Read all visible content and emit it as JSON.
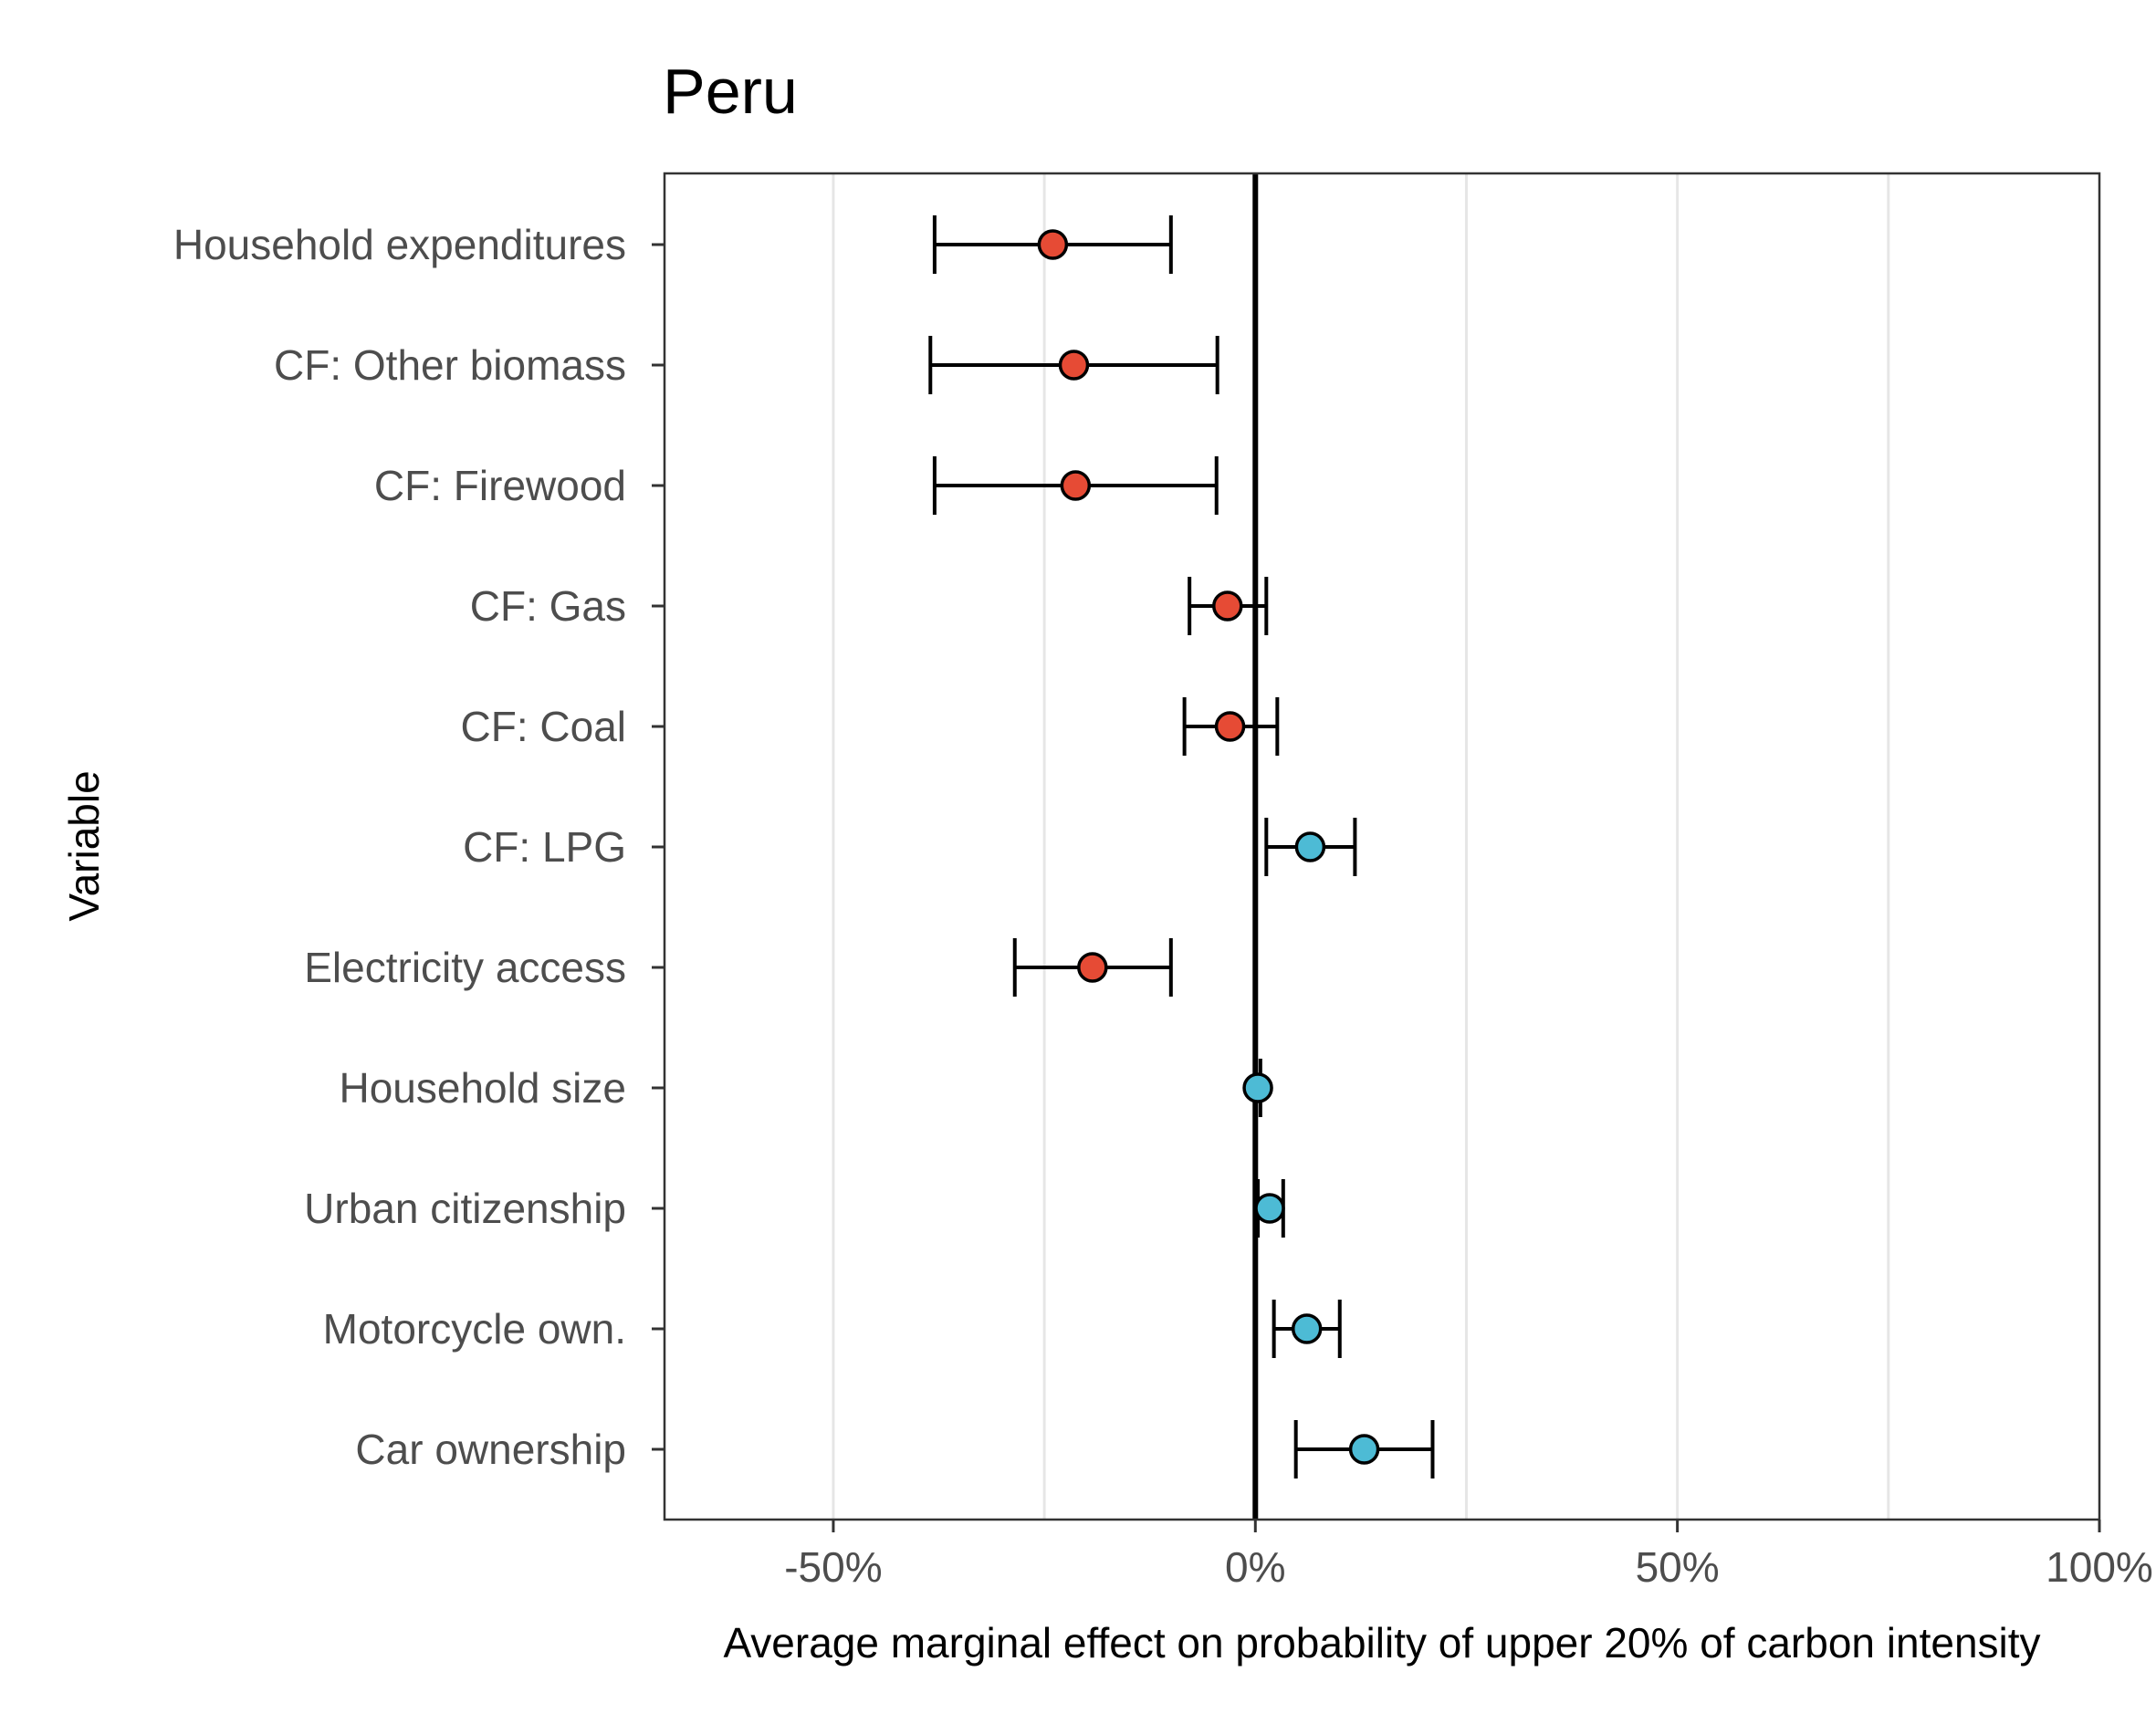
{
  "chart_data": {
    "type": "scatter",
    "title": "Peru",
    "xlabel": "Average marginal effect on probability of upper 20% of carbon intensity",
    "ylabel": "Variable",
    "xlim": [
      -0.7,
      1.0
    ],
    "x_ticks": [
      -0.5,
      0,
      0.5,
      1.0
    ],
    "x_tick_labels": [
      "-50%",
      "0%",
      "50%",
      "100%"
    ],
    "grid": "vertical",
    "reference_line_x": 0,
    "colors": {
      "negative": "#E64B35",
      "positive": "#4DBBD5",
      "whisker": "#000000"
    },
    "points": [
      {
        "label": "Household expenditures",
        "estimate": -0.24,
        "ci_low": -0.38,
        "ci_high": -0.1,
        "sign": "negative"
      },
      {
        "label": "CF: Other biomass",
        "estimate": -0.215,
        "ci_low": -0.385,
        "ci_high": -0.045,
        "sign": "negative"
      },
      {
        "label": "CF: Firewood",
        "estimate": -0.213,
        "ci_low": -0.38,
        "ci_high": -0.046,
        "sign": "negative"
      },
      {
        "label": "CF: Gas",
        "estimate": -0.033,
        "ci_low": -0.078,
        "ci_high": 0.013,
        "sign": "negative"
      },
      {
        "label": "CF: Coal",
        "estimate": -0.03,
        "ci_low": -0.084,
        "ci_high": 0.026,
        "sign": "negative"
      },
      {
        "label": "CF: LPG",
        "estimate": 0.065,
        "ci_low": 0.013,
        "ci_high": 0.118,
        "sign": "positive"
      },
      {
        "label": "Electricity access",
        "estimate": -0.193,
        "ci_low": -0.285,
        "ci_high": -0.1,
        "sign": "negative"
      },
      {
        "label": "Household size",
        "estimate": 0.003,
        "ci_low": 0.0,
        "ci_high": 0.006,
        "sign": "positive"
      },
      {
        "label": "Urban citizenship",
        "estimate": 0.017,
        "ci_low": 0.003,
        "ci_high": 0.033,
        "sign": "positive"
      },
      {
        "label": "Motorcycle own.",
        "estimate": 0.061,
        "ci_low": 0.022,
        "ci_high": 0.1,
        "sign": "positive"
      },
      {
        "label": "Car ownership",
        "estimate": 0.129,
        "ci_low": 0.048,
        "ci_high": 0.21,
        "sign": "positive"
      }
    ]
  }
}
